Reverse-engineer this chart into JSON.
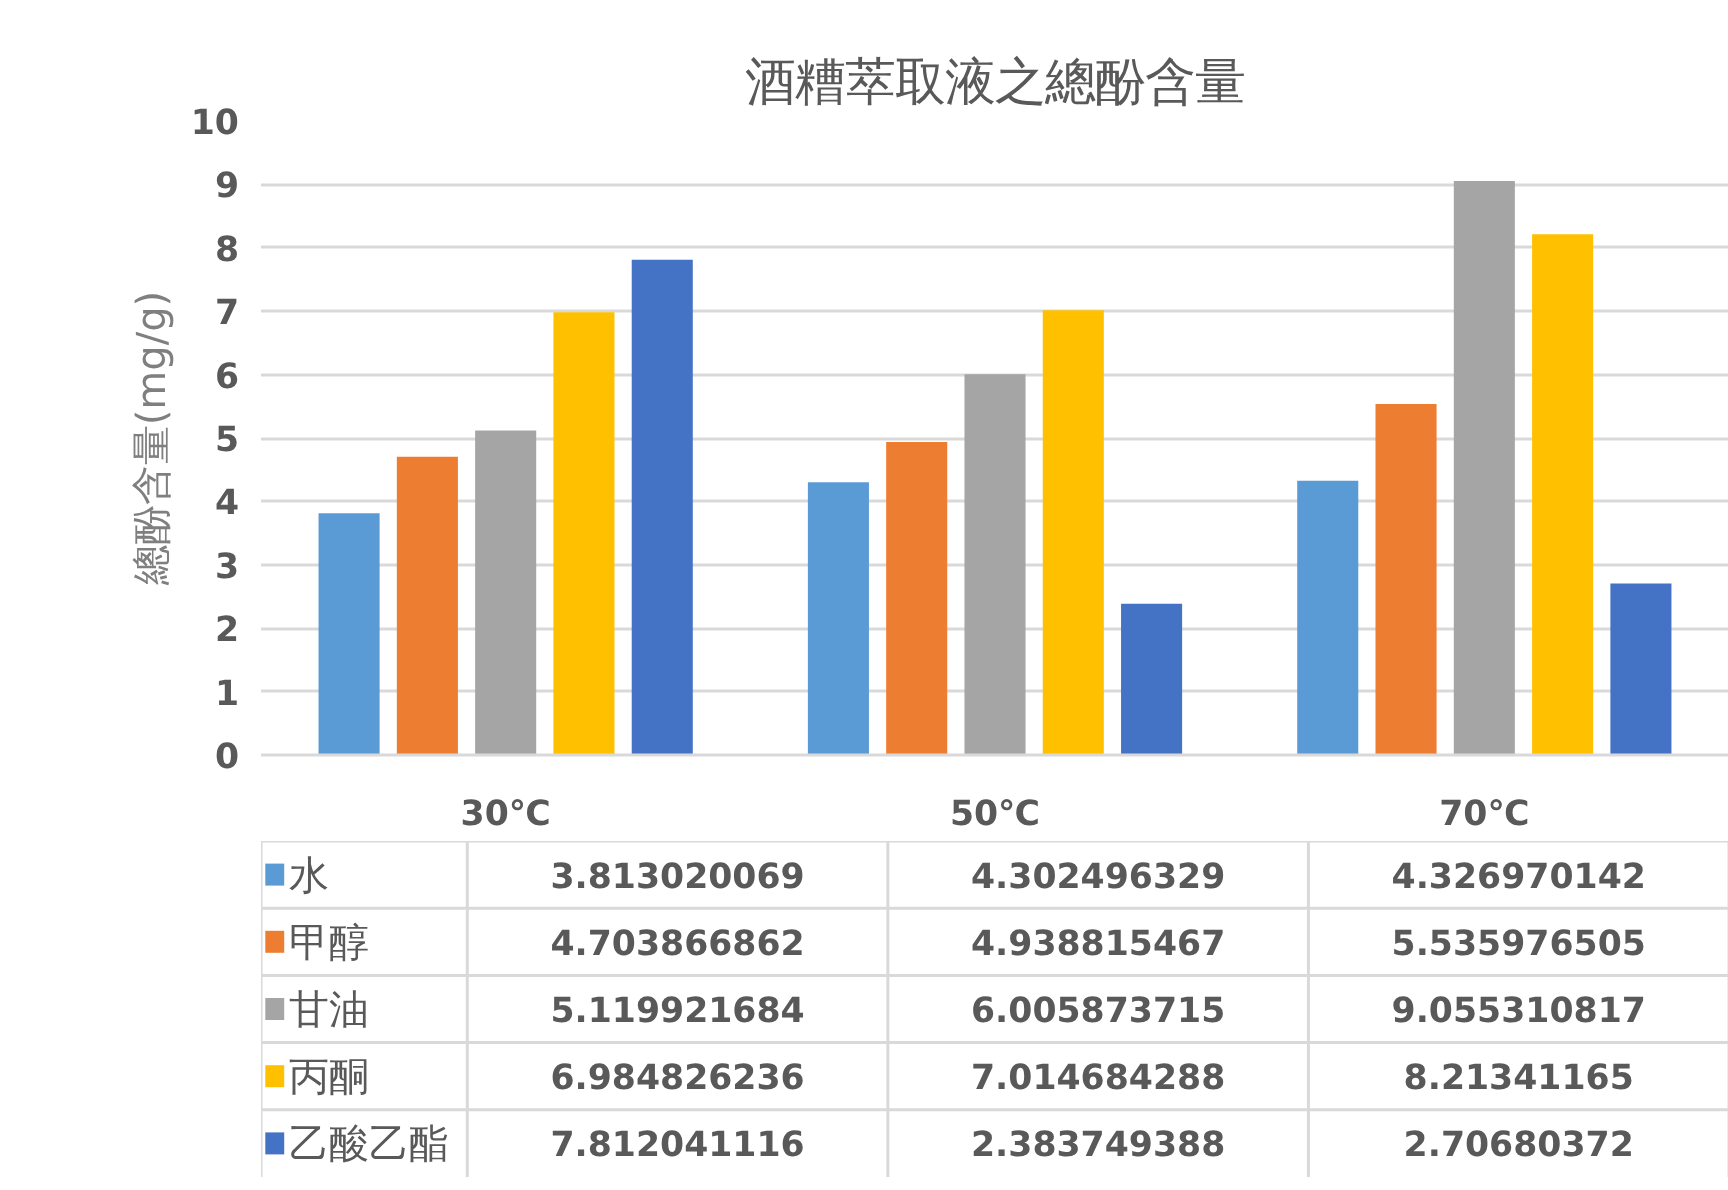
{
  "chart_data": {
    "type": "bar",
    "title": "酒糟萃取液之總酚含量",
    "ylabel": "總酚含量(mg/g)",
    "categories": [
      "30℃",
      "50℃",
      "70℃"
    ],
    "series": [
      {
        "name": "水",
        "color": "#5b9bd5",
        "values": [
          3.813020069,
          4.302496329,
          4.326970142
        ]
      },
      {
        "name": "甲醇",
        "color": "#ed7d31",
        "values": [
          4.703866862,
          4.938815467,
          5.535976505
        ]
      },
      {
        "name": "甘油",
        "color": "#a5a5a5",
        "values": [
          5.119921684,
          6.005873715,
          9.055310817
        ]
      },
      {
        "name": "丙酮",
        "color": "#ffc000",
        "values": [
          6.984826236,
          7.014684288,
          8.21341165
        ]
      },
      {
        "name": "乙酸乙酯",
        "color": "#4472c4",
        "values": [
          7.812041116,
          2.383749388,
          2.70680372
        ]
      }
    ],
    "ylim": [
      0,
      10
    ],
    "yticks": [
      0,
      1,
      2,
      3,
      4,
      5,
      6,
      7,
      8,
      9,
      10
    ],
    "grid": "y",
    "legend": "bottom",
    "data_labels": true
  }
}
